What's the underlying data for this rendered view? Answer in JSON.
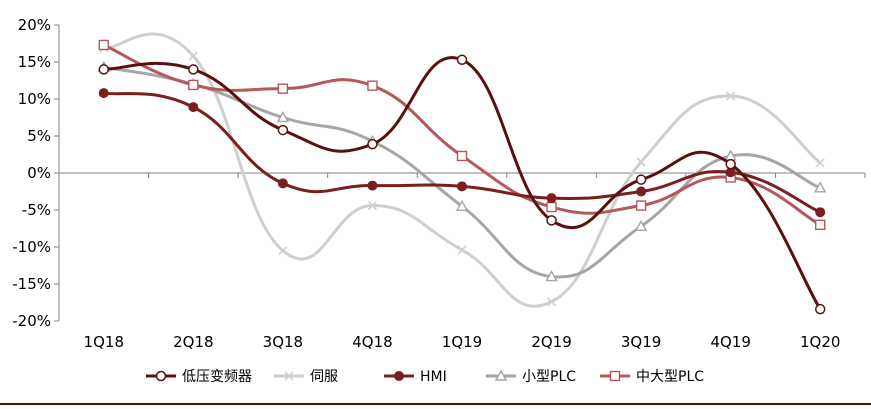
{
  "chart_data": {
    "type": "line",
    "title": "",
    "xlabel": "",
    "ylabel": "",
    "categories": [
      "1Q18",
      "2Q18",
      "3Q18",
      "4Q18",
      "1Q19",
      "2Q19",
      "3Q19",
      "4Q19",
      "1Q20"
    ],
    "ylim": [
      -20,
      20
    ],
    "yticks": [
      -20,
      -15,
      -10,
      -5,
      0,
      5,
      10,
      15,
      20
    ],
    "ytick_labels": [
      "-20%",
      "-15%",
      "-10%",
      "-5%",
      "0%",
      "5%",
      "10%",
      "15%",
      "20%"
    ],
    "grid": false,
    "legend_position": "bottom",
    "series": [
      {
        "name": "低压变频器",
        "color": "#5b1010",
        "marker": "circle-open",
        "values": [
          14.0,
          14.0,
          5.8,
          3.9,
          15.3,
          -6.4,
          -0.9,
          1.2,
          -18.4
        ]
      },
      {
        "name": "伺服",
        "color": "#cfcfcf",
        "marker": "x",
        "values": [
          16.9,
          15.8,
          -10.5,
          -4.4,
          -10.4,
          -17.4,
          1.5,
          10.4,
          1.4
        ]
      },
      {
        "name": "HMI",
        "color": "#7a1f1f",
        "marker": "circle-filled",
        "values": [
          10.8,
          8.9,
          -1.4,
          -1.7,
          -1.8,
          -3.4,
          -2.5,
          0.1,
          -5.3
        ]
      },
      {
        "name": "小型PLC",
        "color": "#a6a6a6",
        "marker": "triangle-open",
        "values": [
          14.3,
          12.0,
          7.5,
          4.3,
          -4.5,
          -14.0,
          -7.2,
          2.3,
          -2.0
        ]
      },
      {
        "name": "中大型PLC",
        "color": "#b5585c",
        "marker": "square-open",
        "values": [
          17.3,
          11.9,
          11.4,
          11.8,
          2.3,
          -4.6,
          -4.4,
          -0.6,
          -7.0
        ]
      }
    ]
  }
}
